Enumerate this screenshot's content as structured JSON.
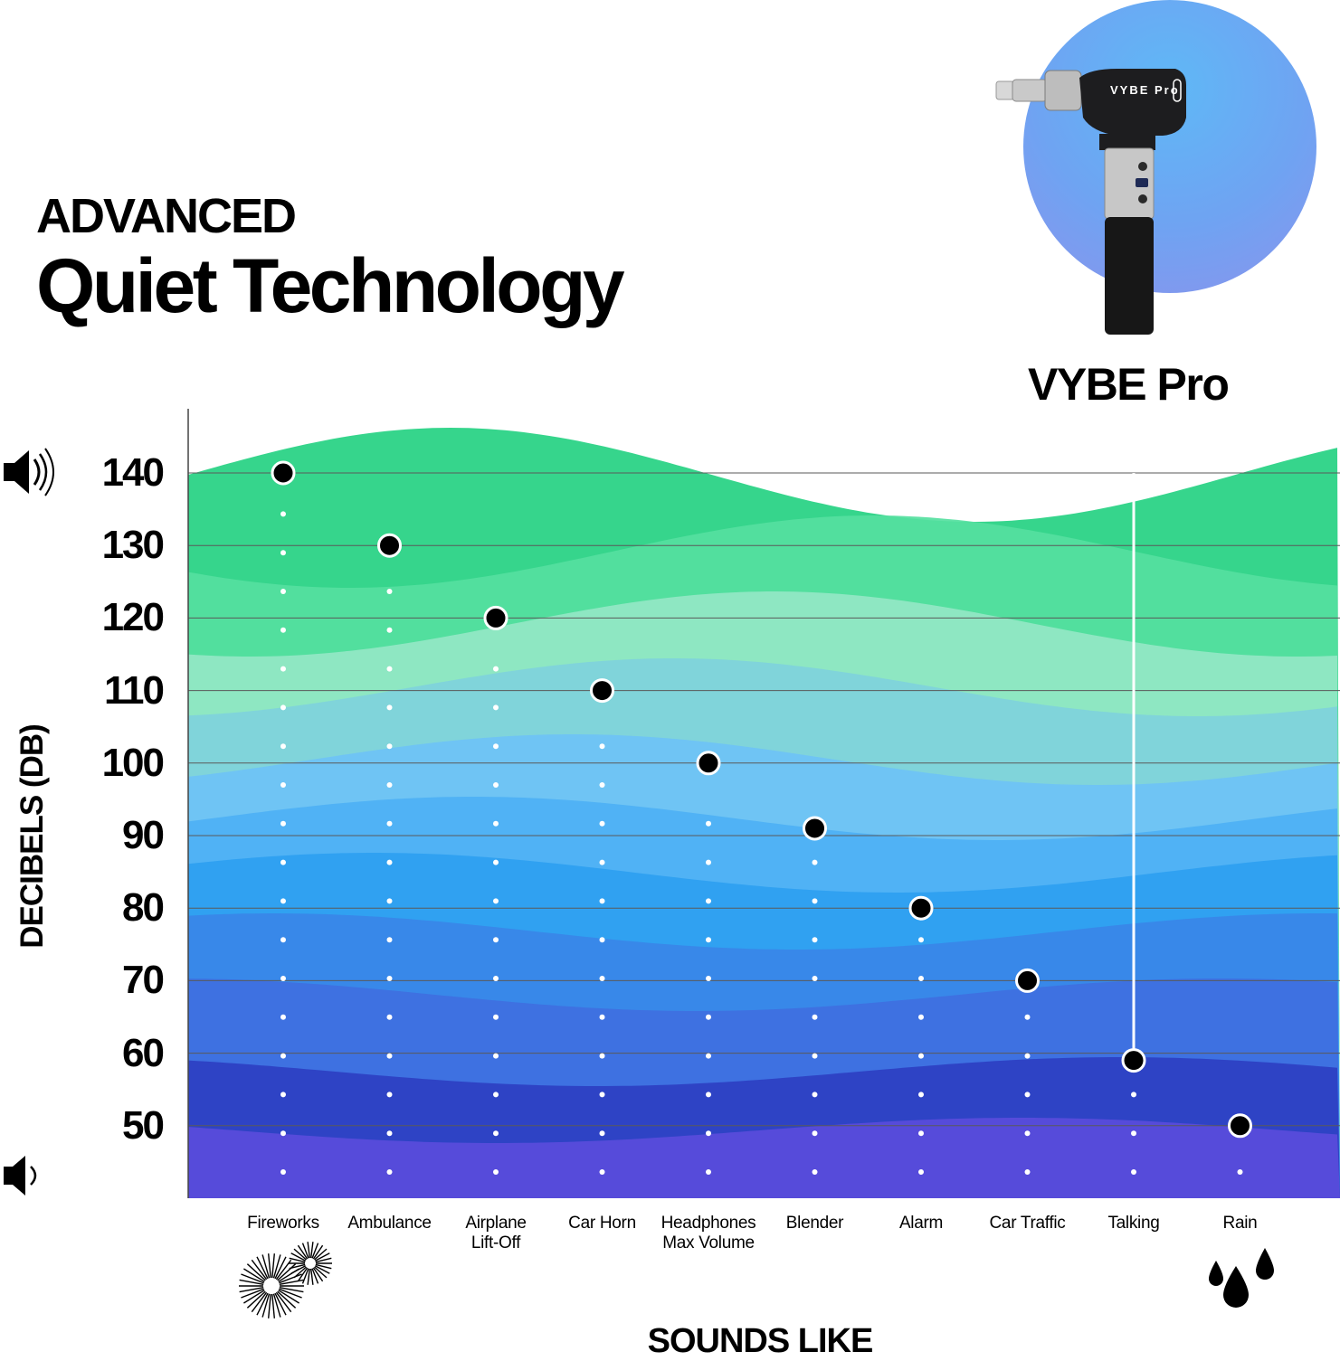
{
  "headline": {
    "kicker": "ADVANCED",
    "title": "Quiet Technology"
  },
  "product": {
    "name": "VYBE Pro",
    "device_label": "VYBE Pro"
  },
  "colors": {
    "bands_top_to_bottom": [
      "#36d58c",
      "#55dfa0",
      "#94e7c6",
      "#7fd3dc",
      "#6ec2f6",
      "#4db0f4",
      "#2e9ff0",
      "#3a86e8",
      "#3f6fe0",
      "#2c3fc2",
      "#5a4cdb"
    ],
    "marker_fill": "#000000",
    "marker_stroke": "#ffffff",
    "gridline": "#5a5a5a"
  },
  "chart_data": {
    "type": "scatter",
    "xlabel": "SOUNDS LIKE",
    "ylabel": "DECIBELS (DB)",
    "ylim": [
      40,
      150
    ],
    "yticks": [
      140,
      130,
      120,
      110,
      100,
      90,
      80,
      70,
      60,
      50
    ],
    "grid": true,
    "categories": [
      "Fireworks",
      "Ambulance",
      "Airplane Lift-Off",
      "Car Horn",
      "Headphones Max Volume",
      "Blender",
      "Alarm",
      "Car Traffic",
      "Talking",
      "Rain"
    ],
    "category_lines": [
      [
        "Fireworks"
      ],
      [
        "Ambulance"
      ],
      [
        "Airplane",
        "Lift-Off"
      ],
      [
        "Car Horn"
      ],
      [
        "Headphones",
        "Max Volume"
      ],
      [
        "Blender"
      ],
      [
        "Alarm"
      ],
      [
        "Car Traffic"
      ],
      [
        "Talking"
      ],
      [
        "Rain"
      ]
    ],
    "values": [
      140,
      130,
      120,
      110,
      100,
      91,
      80,
      70,
      59,
      50
    ],
    "highlight": {
      "category": "Talking",
      "value": 59
    }
  },
  "icons": {
    "loud": "speaker-loud-icon",
    "quiet": "speaker-quiet-icon",
    "fireworks": "fireworks-icon",
    "rain": "rain-drops-icon"
  }
}
